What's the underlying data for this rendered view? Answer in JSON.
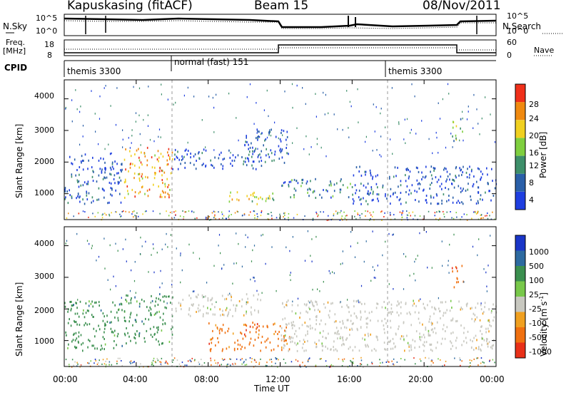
{
  "header": {
    "station": "Kapuskasing (fitACF)",
    "beam": "Beam 15",
    "date": "08/Nov/2011"
  },
  "housekeeping": {
    "nsky_label": "N.Sky",
    "nsearch_label": "N.Search",
    "nsky_ticks": [
      "10^5",
      "10^0"
    ],
    "nsearch_ticks": [
      "10^5",
      "10^0"
    ],
    "freq_label": "Freq.",
    "freq_unit": "[MHz]",
    "freq_ticks": [
      "18",
      "8"
    ],
    "nave_ticks": [
      "60",
      "0"
    ],
    "nave_label": "Nave",
    "cpid_label": "CPID",
    "modes": [
      {
        "name": "themis 3300",
        "start_hour": 0
      },
      {
        "name": "normal (fast) 151",
        "start_hour": 6
      },
      {
        "name": "themis 3300",
        "start_hour": 18
      }
    ]
  },
  "chart_data": [
    {
      "type": "heatmap",
      "name": "power",
      "ylabel": "Slant Range [km]",
      "yticks": [
        "1000",
        "2000",
        "3000",
        "4000"
      ],
      "ylim": [
        180,
        4600
      ],
      "xlim": [
        0,
        24
      ],
      "colorbar": {
        "label": "Power [dB]",
        "ticks": [
          "4",
          "8",
          "12",
          "16",
          "20",
          "24",
          "28"
        ],
        "colors": [
          "#1f3fe0",
          "#2a5fa8",
          "#3e8f6a",
          "#7fcf3f",
          "#f0d020",
          "#f08a10",
          "#f0301a"
        ]
      },
      "features": [
        {
          "t0": 0.0,
          "t1": 3.2,
          "r0": 700,
          "r1": 2300,
          "level": 8
        },
        {
          "t0": 3.3,
          "t1": 6.0,
          "r0": 900,
          "r1": 2500,
          "level": 22
        },
        {
          "t0": 6.0,
          "t1": 8.5,
          "r0": 1800,
          "r1": 2500,
          "level": 8
        },
        {
          "t0": 8.5,
          "t1": 11.0,
          "r0": 1800,
          "r1": 2400,
          "level": 8
        },
        {
          "t0": 9.0,
          "t1": 11.8,
          "r0": 700,
          "r1": 1100,
          "level": 20
        },
        {
          "t0": 10.0,
          "t1": 12.5,
          "r0": 2000,
          "r1": 3100,
          "level": 8
        },
        {
          "t0": 12.0,
          "t1": 16.0,
          "r0": 900,
          "r1": 1500,
          "level": 10
        },
        {
          "t0": 16.0,
          "t1": 24.0,
          "r0": 700,
          "r1": 1900,
          "level": 8
        },
        {
          "t0": 21.5,
          "t1": 22.2,
          "r0": 2700,
          "r1": 3400,
          "level": 16
        }
      ]
    },
    {
      "type": "heatmap",
      "name": "velocity",
      "ylabel": "Slant Range [km]",
      "yticks": [
        "1000",
        "2000",
        "3000",
        "4000"
      ],
      "ylim": [
        180,
        4600
      ],
      "xlim": [
        0,
        24
      ],
      "xticks": [
        "00:00",
        "04:00",
        "08:00",
        "12:00",
        "16:00",
        "20:00",
        "00:00"
      ],
      "xlabel": "Time UT",
      "colorbar": {
        "label": "Velocity [m s",
        "label_sup": "-1",
        "label_end": "]",
        "ticks": [
          "1000",
          "500",
          "100",
          "25",
          "-25",
          "-100",
          "-500",
          "-1000"
        ],
        "colors": [
          "#1a36c8",
          "#2d6aa0",
          "#3b8f4f",
          "#78c84a",
          "#c8c8c0",
          "#f0a020",
          "#f07010",
          "#e83018"
        ]
      },
      "features": [
        {
          "t0": 0.0,
          "t1": 3.2,
          "r0": 700,
          "r1": 2300,
          "level": 100
        },
        {
          "t0": 3.3,
          "t1": 6.0,
          "r0": 900,
          "r1": 2500,
          "level": 100
        },
        {
          "t0": 6.0,
          "t1": 11.0,
          "r0": 1800,
          "r1": 2500,
          "level": 0
        },
        {
          "t0": 8.0,
          "t1": 12.5,
          "r0": 700,
          "r1": 1600,
          "level": -100
        },
        {
          "t0": 12.0,
          "t1": 24.0,
          "r0": 700,
          "r1": 2300,
          "level": 0
        },
        {
          "t0": 21.5,
          "t1": 22.2,
          "r0": 2700,
          "r1": 3400,
          "level": -100
        }
      ]
    }
  ]
}
